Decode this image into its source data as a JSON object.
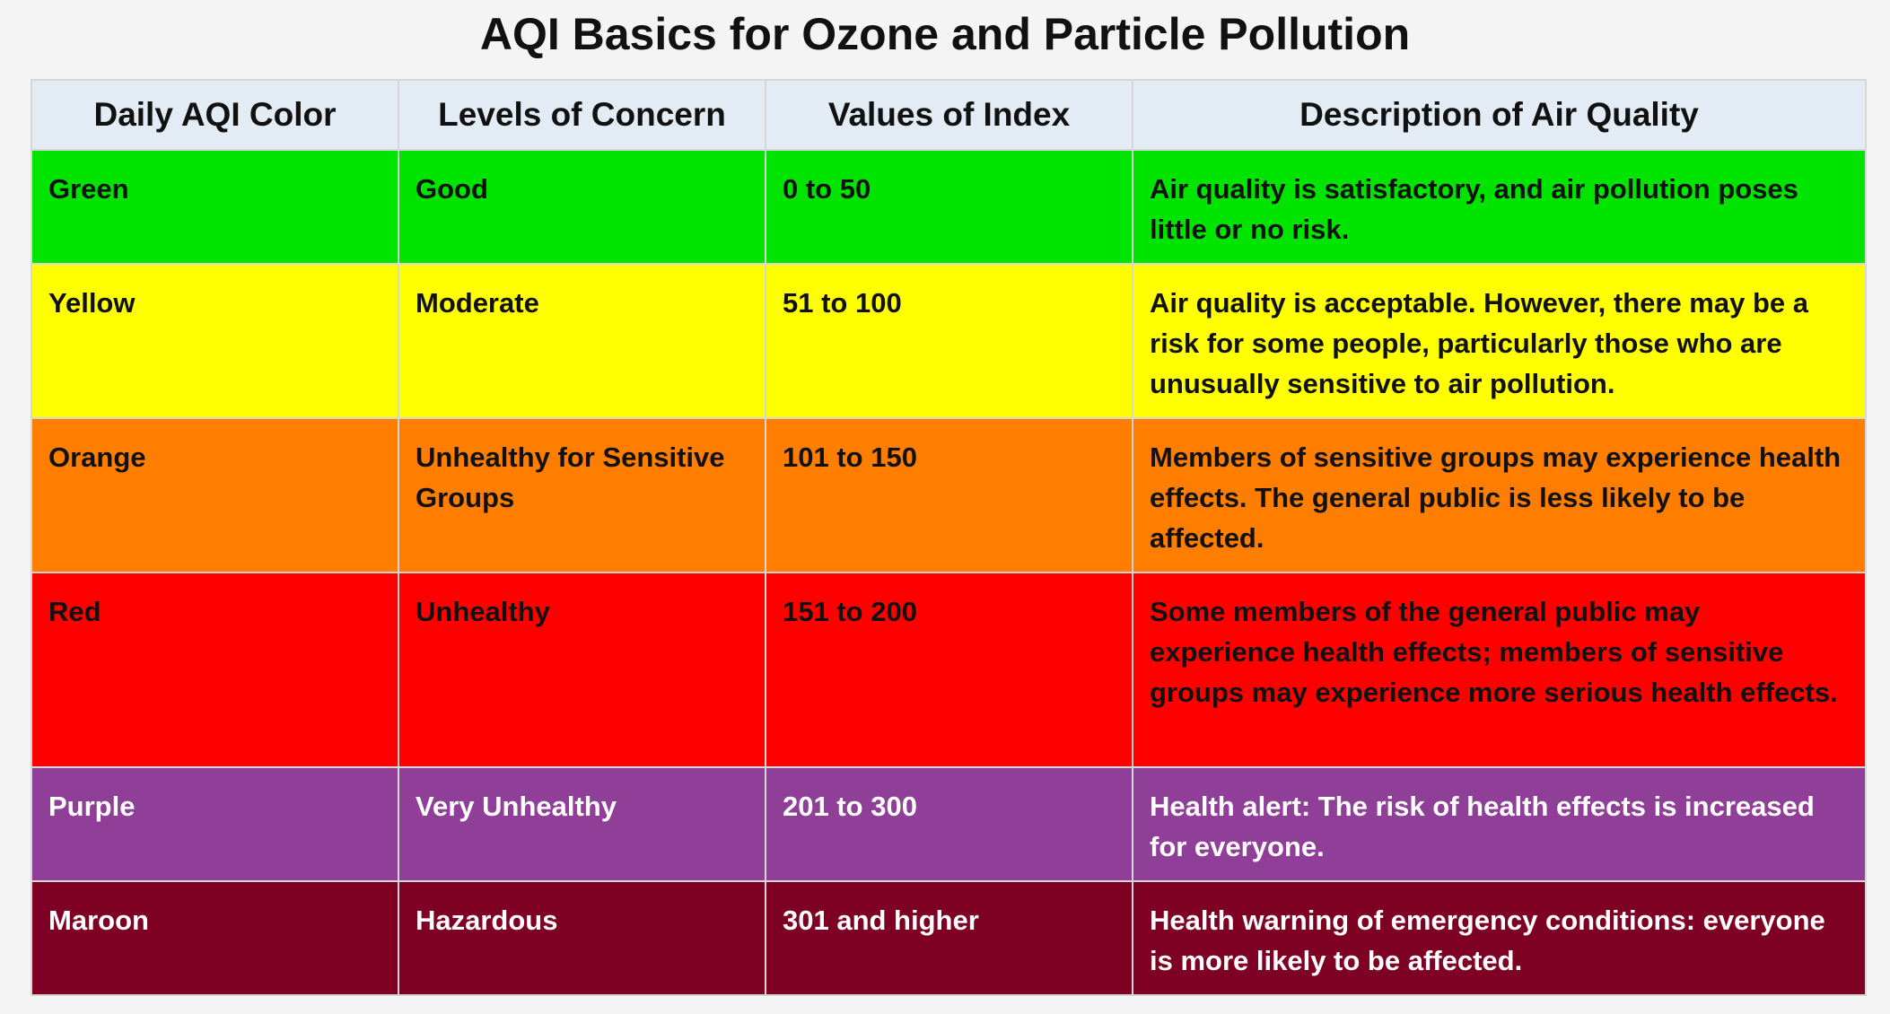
{
  "title": "AQI Basics for Ozone and Particle Pollution",
  "headers": [
    "Daily AQI Color",
    "Levels of Concern",
    "Values of Index",
    "Description of Air Quality"
  ],
  "rows": [
    {
      "color": "Green",
      "level": "Good",
      "values": "0 to 50",
      "description": "Air quality is satisfactory, and air pollution poses little or no risk.",
      "bg": "#00e400",
      "text_color": "#111111"
    },
    {
      "color": "Yellow",
      "level": "Moderate",
      "values": "51 to 100",
      "description": "Air quality is acceptable. However, there may be a risk for some people, particularly those who are unusually sensitive to air pollution.",
      "bg": "#ffff00",
      "text_color": "#111111"
    },
    {
      "color": "Orange",
      "level": "Unhealthy for Sensitive Groups",
      "values": "101 to 150",
      "description": "Members of sensitive groups may experience health effects. The general public is less likely to be affected.",
      "bg": "#ff7e00",
      "text_color": "#111111"
    },
    {
      "color": "Red",
      "level": "Unhealthy",
      "values": "151 to 200",
      "description": "Some members of the general public may experience health effects; members of sensitive groups may experience more serious health effects.",
      "bg": "#ff0000",
      "text_color": "#111111"
    },
    {
      "color": "Purple",
      "level": "Very Unhealthy",
      "values": "201 to 300",
      "description": "Health alert: The risk of health effects is increased for everyone.",
      "bg": "#8f3f97",
      "text_color": "#ffffff"
    },
    {
      "color": "Maroon",
      "level": "Hazardous",
      "values": "301 and higher",
      "description": "Health warning of emergency conditions: everyone is more likely to be affected.",
      "bg": "#7e0023",
      "text_color": "#ffffff"
    }
  ]
}
